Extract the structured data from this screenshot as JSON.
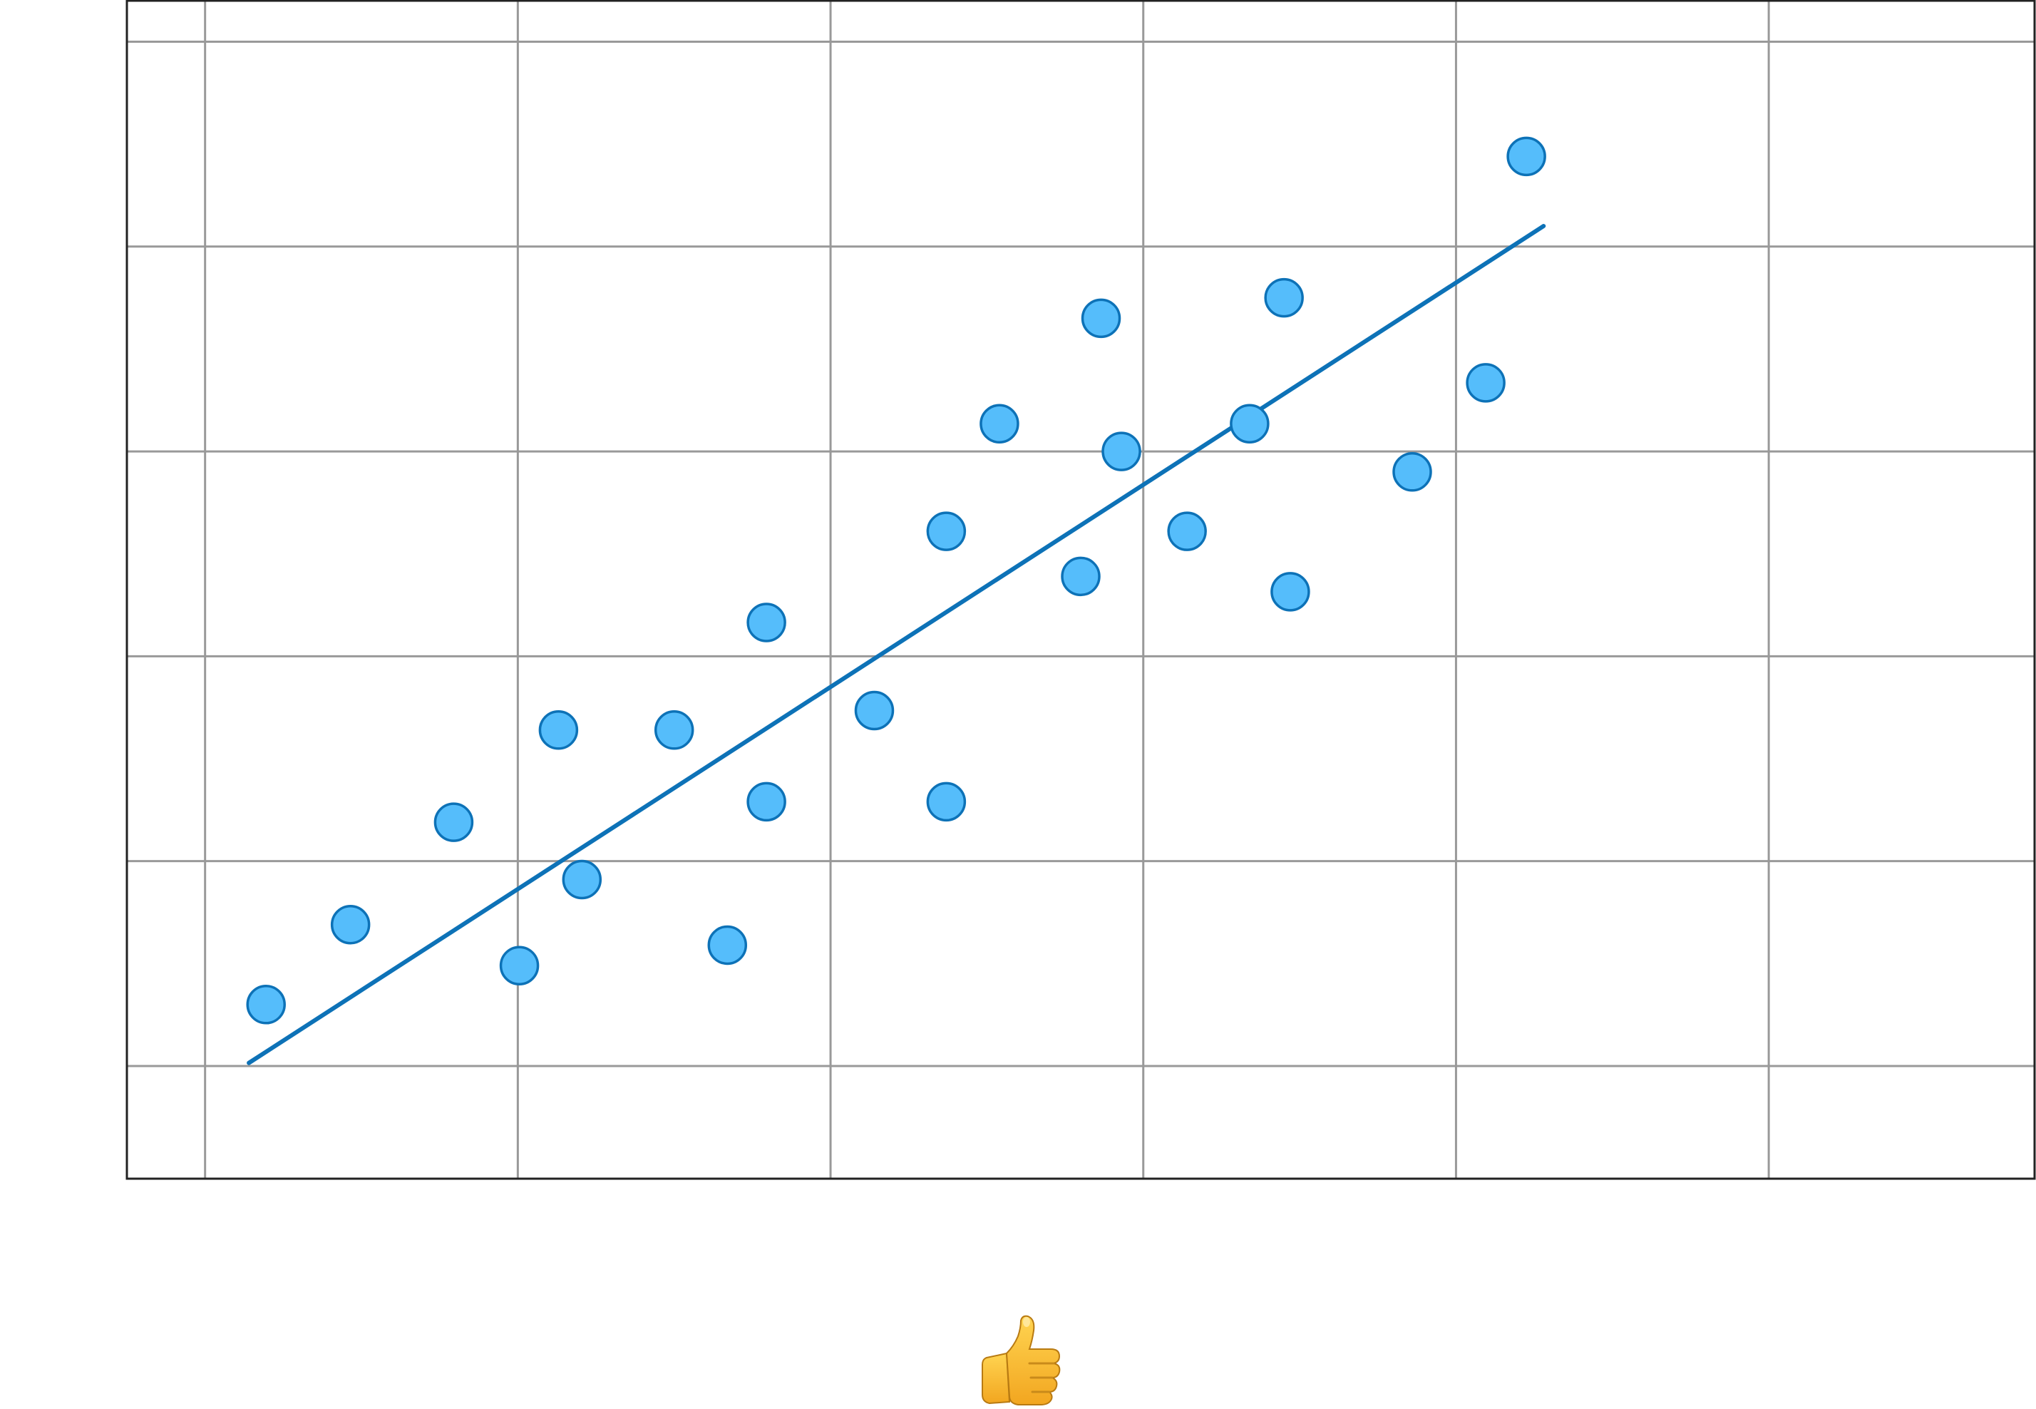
{
  "chart_data": {
    "type": "scatter",
    "title": "",
    "xlabel": "",
    "ylabel": "",
    "xlim": [
      -0.5,
      11.7
    ],
    "ylim": [
      -1.1,
      10.4
    ],
    "x_gridlines": [
      0,
      2,
      4,
      6,
      8,
      10
    ],
    "y_gridlines": [
      0,
      2,
      4,
      6,
      8,
      10
    ],
    "grid": true,
    "legend": "none",
    "points": [
      {
        "x": 0.39,
        "y": 0.6
      },
      {
        "x": 0.93,
        "y": 1.38
      },
      {
        "x": 1.59,
        "y": 2.38
      },
      {
        "x": 2.01,
        "y": 0.98
      },
      {
        "x": 2.26,
        "y": 3.28
      },
      {
        "x": 2.41,
        "y": 1.82
      },
      {
        "x": 3.0,
        "y": 3.28
      },
      {
        "x": 3.34,
        "y": 1.18
      },
      {
        "x": 3.59,
        "y": 2.58
      },
      {
        "x": 3.59,
        "y": 4.33
      },
      {
        "x": 4.28,
        "y": 3.47
      },
      {
        "x": 4.74,
        "y": 2.58
      },
      {
        "x": 4.74,
        "y": 5.22
      },
      {
        "x": 5.08,
        "y": 6.27
      },
      {
        "x": 5.6,
        "y": 4.78
      },
      {
        "x": 5.73,
        "y": 7.3
      },
      {
        "x": 5.86,
        "y": 6.0
      },
      {
        "x": 6.28,
        "y": 5.22
      },
      {
        "x": 6.68,
        "y": 6.27
      },
      {
        "x": 6.9,
        "y": 7.5
      },
      {
        "x": 6.94,
        "y": 4.63
      },
      {
        "x": 7.72,
        "y": 5.8
      },
      {
        "x": 8.19,
        "y": 6.67
      },
      {
        "x": 8.45,
        "y": 8.88
      }
    ],
    "trendline": {
      "x": [
        0.28,
        8.56
      ],
      "y": [
        0.03,
        8.2
      ]
    },
    "colors": {
      "point_fill": "#55bdfb",
      "point_stroke": "#0d72b7",
      "trendline": "#0d72b7",
      "grid": "#999999",
      "frame": "#222222"
    }
  },
  "footer": {
    "reaction_icon": "thumbs-up-icon",
    "reaction_glyph": "👍"
  }
}
